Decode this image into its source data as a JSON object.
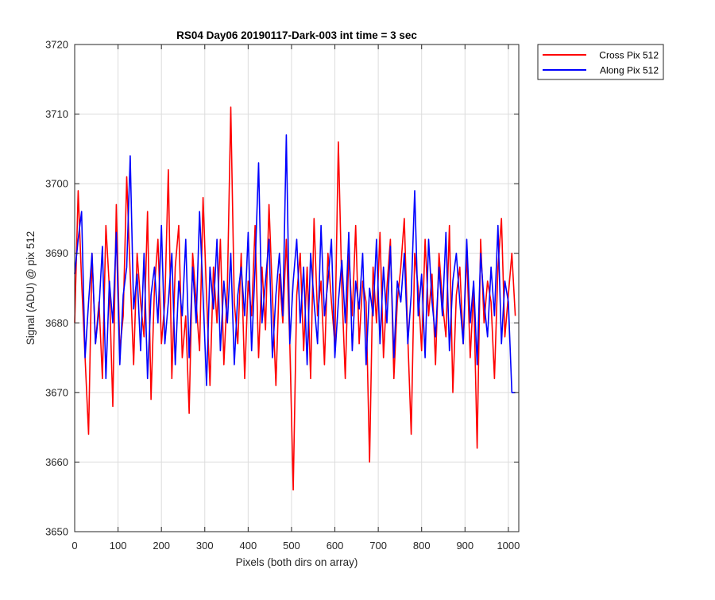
{
  "chart_data": {
    "type": "line",
    "title": "RS04 Day06 20190117-Dark-003 int time = 3 sec",
    "xlabel": "Pixels (both dirs on array)",
    "ylabel": "Signal (ADU) @ pix 512",
    "xlim": [
      0,
      1024
    ],
    "ylim": [
      3650,
      3720
    ],
    "xticks": [
      0,
      100,
      200,
      300,
      400,
      500,
      600,
      700,
      800,
      900,
      1000
    ],
    "yticks": [
      3650,
      3660,
      3670,
      3680,
      3690,
      3700,
      3710,
      3720
    ],
    "grid": true,
    "legend_position": "outside-top-right",
    "x_start": 0,
    "x_step": 8,
    "series": [
      {
        "name": "Cross Pix 512",
        "color": "#ff0000",
        "values": [
          3680,
          3699,
          3686,
          3675,
          3664,
          3690,
          3677,
          3683,
          3672,
          3694,
          3685,
          3668,
          3697,
          3676,
          3681,
          3701,
          3687,
          3674,
          3690,
          3683,
          3678,
          3696,
          3669,
          3685,
          3692,
          3677,
          3683,
          3702,
          3672,
          3688,
          3694,
          3675,
          3681,
          3667,
          3690,
          3683,
          3676,
          3698,
          3684,
          3671,
          3688,
          3680,
          3692,
          3674,
          3685,
          3711,
          3683,
          3677,
          3690,
          3672,
          3686,
          3681,
          3694,
          3675,
          3688,
          3679,
          3697,
          3684,
          3671,
          3687,
          3680,
          3692,
          3677,
          3656,
          3684,
          3690,
          3676,
          3688,
          3672,
          3695,
          3681,
          3686,
          3674,
          3690,
          3683,
          3677,
          3706,
          3685,
          3672,
          3690,
          3681,
          3694,
          3677,
          3686,
          3683,
          3660,
          3688,
          3680,
          3693,
          3675,
          3685,
          3692,
          3672,
          3683,
          3688,
          3695,
          3678,
          3664,
          3690,
          3685,
          3676,
          3692,
          3681,
          3687,
          3674,
          3690,
          3683,
          3678,
          3694,
          3670,
          3684,
          3688,
          3677,
          3690,
          3675,
          3685,
          3662,
          3692,
          3680,
          3686,
          3683,
          3672,
          3688,
          3695,
          3678,
          3684,
          3690,
          3681
        ]
      },
      {
        "name": "Along Pix 512",
        "color": "#0000ff",
        "values": [
          3687,
          3692,
          3696,
          3675,
          3683,
          3690,
          3677,
          3682,
          3691,
          3672,
          3686,
          3680,
          3693,
          3674,
          3684,
          3688,
          3704,
          3682,
          3687,
          3676,
          3690,
          3672,
          3684,
          3688,
          3680,
          3694,
          3677,
          3683,
          3690,
          3674,
          3686,
          3681,
          3692,
          3675,
          3688,
          3680,
          3696,
          3684,
          3671,
          3688,
          3682,
          3692,
          3676,
          3686,
          3680,
          3690,
          3674,
          3684,
          3688,
          3681,
          3693,
          3676,
          3688,
          3703,
          3680,
          3686,
          3692,
          3675,
          3684,
          3690,
          3681,
          3707,
          3677,
          3686,
          3692,
          3680,
          3688,
          3674,
          3690,
          3683,
          3677,
          3694,
          3681,
          3686,
          3692,
          3675,
          3683,
          3689,
          3680,
          3693,
          3676,
          3686,
          3682,
          3690,
          3674,
          3685,
          3681,
          3692,
          3677,
          3688,
          3680,
          3691,
          3675,
          3686,
          3683,
          3690,
          3677,
          3684,
          3699,
          3681,
          3687,
          3675,
          3692,
          3683,
          3678,
          3688,
          3681,
          3693,
          3676,
          3686,
          3690,
          3683,
          3677,
          3692,
          3680,
          3686,
          3674,
          3690,
          3683,
          3678,
          3688,
          3681,
          3694,
          3677,
          3686,
          3683,
          3670,
          3670
        ]
      }
    ]
  }
}
